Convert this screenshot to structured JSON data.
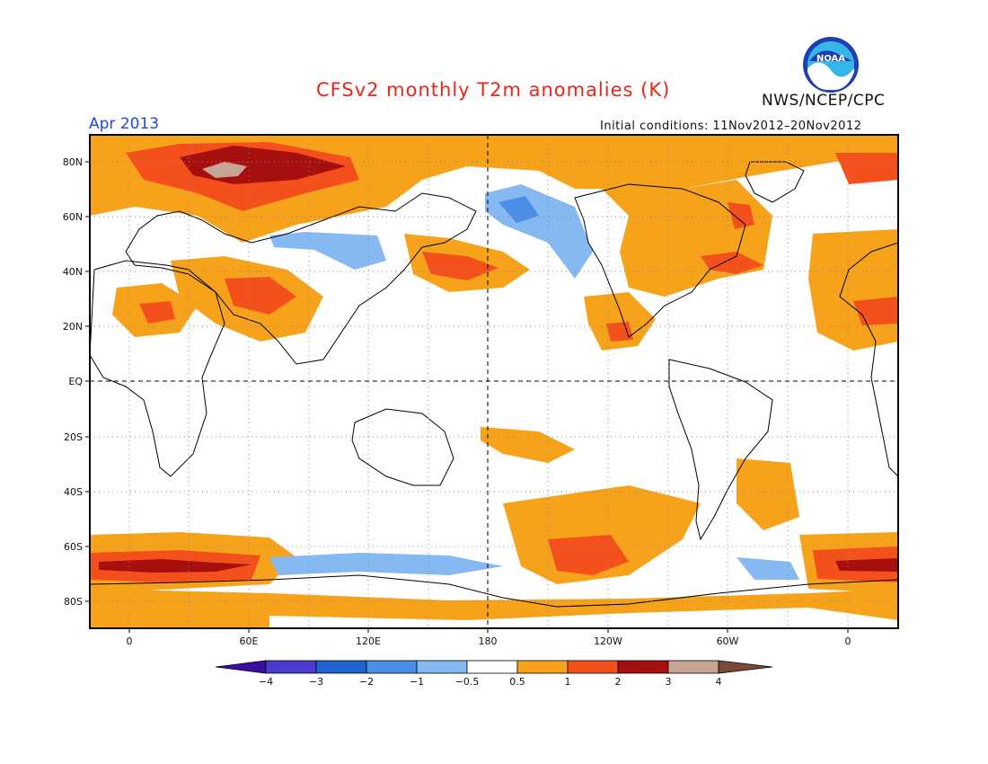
{
  "title": "CFSv2 monthly T2m anomalies (K)",
  "agency": "NWS/NCEP/CPC",
  "logo_text": "NOAA",
  "period": "Apr 2013",
  "initial_conditions": "Initial conditions: 11Nov2012–20Nov2012",
  "lat_ticks": [
    "80N",
    "60N",
    "40N",
    "20N",
    "EQ",
    "20S",
    "40S",
    "60S",
    "80S"
  ],
  "lon_ticks": [
    "0",
    "60E",
    "120E",
    "180",
    "120W",
    "60W",
    "0"
  ],
  "colorbar": {
    "labels": [
      "−4",
      "−3",
      "−2",
      "−1",
      "−0.5",
      "0.5",
      "1",
      "2",
      "3",
      "4"
    ],
    "colors": [
      "#3a0e9e",
      "#4b3ccf",
      "#1f62d0",
      "#4a8ee8",
      "#86b8f2",
      "#ffffff",
      "#f7a21b",
      "#f4501b",
      "#a70f0f",
      "#c8a494",
      "#7a4a3a"
    ]
  },
  "anomaly_colors": {
    "warm1": "#f7a21b",
    "warm2": "#f4501b",
    "warm3": "#a70f0f",
    "warm4": "#c8a494",
    "cool1": "#86b8f2",
    "cool2": "#4a8ee8",
    "cool3": "#1f62d0"
  }
}
